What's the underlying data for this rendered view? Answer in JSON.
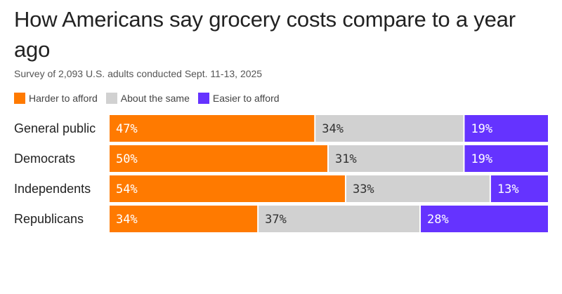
{
  "chart_data": {
    "type": "bar",
    "orientation": "horizontal",
    "stacked": true,
    "title": "How Americans say grocery costs compare to a year ago",
    "subtitle": "Survey of 2,093 U.S. adults conducted Sept. 11-13, 2025",
    "categories": [
      "General public",
      "Democrats",
      "Independents",
      "Republicans"
    ],
    "series": [
      {
        "name": "Harder to afford",
        "color": "#FF7A00",
        "text_color": "#ffffff",
        "values": [
          47,
          50,
          54,
          34
        ]
      },
      {
        "name": "About the same",
        "color": "#D1D1D1",
        "text_color": "#333333",
        "values": [
          34,
          31,
          33,
          37
        ]
      },
      {
        "name": "Easier to afford",
        "color": "#6533FF",
        "text_color": "#ffffff",
        "values": [
          19,
          19,
          13,
          28
        ]
      }
    ],
    "value_suffix": "%",
    "xlim": [
      0,
      100
    ],
    "grid": false,
    "legend_position": "top-left"
  }
}
